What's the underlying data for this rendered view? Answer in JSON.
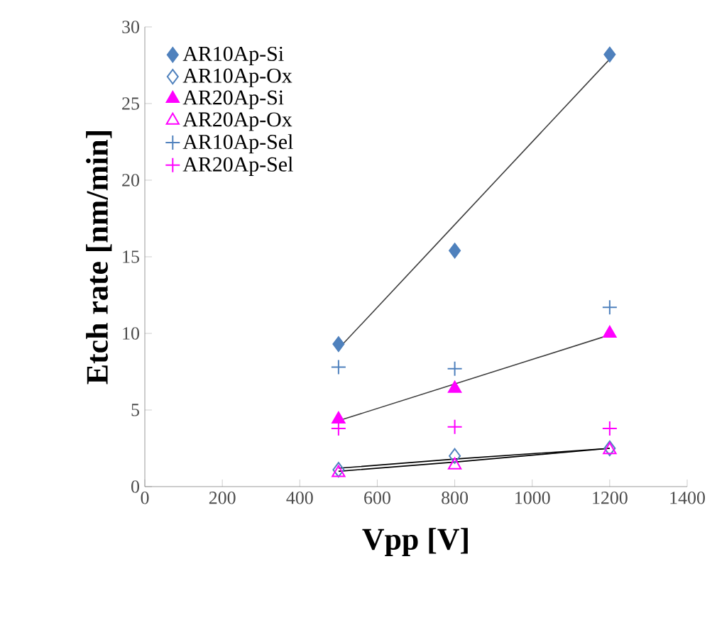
{
  "chart_data": {
    "type": "scatter",
    "xlabel": "Vpp [V]",
    "ylabel": "Etch rate [nm/min]",
    "xlim": [
      0,
      1400
    ],
    "xticks": [
      0,
      200,
      400,
      600,
      800,
      1000,
      1200,
      1400
    ],
    "ylim": [
      0,
      30
    ],
    "yticks": [
      0,
      5,
      10,
      15,
      20,
      25,
      30
    ],
    "x": [
      500,
      800,
      1200
    ],
    "grid": false,
    "legend": "top left",
    "series": [
      {
        "name": "AR10Ap-Si",
        "color": "#4f81bd",
        "marker": "diamond",
        "values": [
          9.3,
          15.4,
          28.2
        ]
      },
      {
        "name": "AR10Ap-Ox",
        "color": "#4f81bd",
        "marker": "diamond open",
        "values": [
          1.1,
          2.0,
          2.5
        ]
      },
      {
        "name": "AR20Ap-Si",
        "color": "#ff00ff",
        "marker": "triangle",
        "values": [
          4.4,
          6.4,
          10.0
        ]
      },
      {
        "name": "AR20Ap-Ox",
        "color": "#ff00ff",
        "marker": "triangle open",
        "values": [
          0.9,
          1.4,
          2.4
        ]
      },
      {
        "name": "AR10Ap-Sel",
        "color": "#4f81bd",
        "marker": "cross",
        "values": [
          7.8,
          7.7,
          11.7
        ]
      },
      {
        "name": "AR20Ap-Sel",
        "color": "#ff00ff",
        "marker": "cross",
        "values": [
          3.8,
          3.9,
          3.8
        ]
      },
      {
        "type": "line",
        "color": "#404040",
        "marker": "none",
        "values": [
          9.0,
          17.1,
          27.9
        ]
      },
      {
        "type": "line",
        "color": "#404040",
        "marker": "none",
        "values": [
          4.3,
          6.7,
          9.9
        ]
      },
      {
        "type": "line",
        "color": "#000000",
        "marker": "none",
        "values": [
          1.2,
          1.8,
          2.5
        ]
      },
      {
        "type": "line",
        "color": "#000000",
        "marker": "none",
        "values": [
          1.0,
          1.6,
          2.5
        ]
      }
    ]
  }
}
